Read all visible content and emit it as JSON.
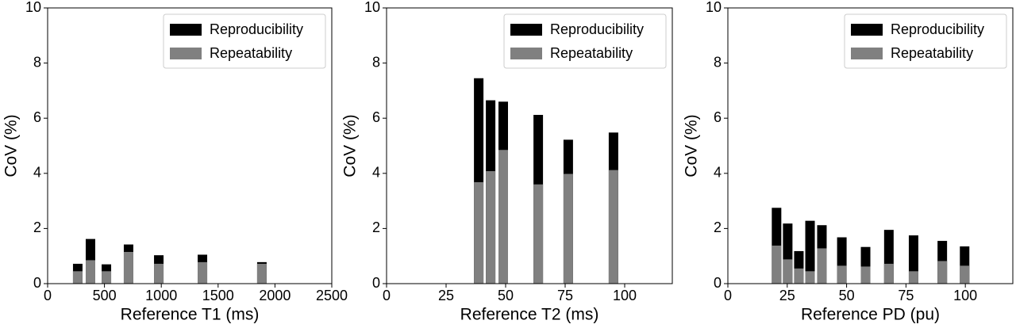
{
  "chart_data": [
    {
      "type": "bar",
      "xlabel": "Reference T1 (ms)",
      "ylabel": "CoV (%)",
      "xlim": [
        0,
        2500
      ],
      "xticks": [
        0,
        500,
        1000,
        1500,
        2000,
        2500
      ],
      "ylim": [
        0,
        10
      ],
      "yticks": [
        0,
        2,
        4,
        6,
        8,
        10
      ],
      "legend": "upper right",
      "x": [
        265,
        377,
        517,
        712,
        978,
        1362,
        1885
      ],
      "series": [
        {
          "name": "Reproducibility",
          "color": "#000000",
          "values": [
            0.72,
            1.62,
            0.7,
            1.42,
            1.03,
            1.05,
            0.78
          ]
        },
        {
          "name": "Repeatability",
          "color": "#808080",
          "values": [
            0.45,
            0.85,
            0.45,
            1.15,
            0.72,
            0.78,
            0.72
          ]
        }
      ]
    },
    {
      "type": "bar",
      "xlabel": "Reference T2 (ms)",
      "ylabel": "CoV (%)",
      "xlim": [
        0,
        120
      ],
      "xticks": [
        0,
        25,
        50,
        75,
        100
      ],
      "ylim": [
        0,
        10
      ],
      "yticks": [
        0,
        2,
        4,
        6,
        8,
        10
      ],
      "legend": "upper right",
      "x": [
        38.7,
        43.7,
        49,
        63.7,
        76.3,
        95.3
      ],
      "series": [
        {
          "name": "Reproducibility",
          "color": "#000000",
          "values": [
            7.45,
            6.65,
            6.6,
            6.12,
            5.22,
            5.48
          ]
        },
        {
          "name": "Repeatability",
          "color": "#808080",
          "values": [
            3.68,
            4.08,
            4.85,
            3.6,
            3.98,
            4.12
          ]
        }
      ]
    },
    {
      "type": "bar",
      "xlabel": "Reference PD (pu)",
      "ylabel": "CoV (%)",
      "xlim": [
        0,
        120
      ],
      "xticks": [
        0,
        25,
        50,
        75,
        100
      ],
      "ylim": [
        0,
        10
      ],
      "yticks": [
        0,
        2,
        4,
        6,
        8,
        10
      ],
      "legend": "upper right",
      "x": [
        20.5,
        25.2,
        29.9,
        34.6,
        39.6,
        48,
        58,
        67.8,
        78.2,
        90.3,
        99.7
      ],
      "series": [
        {
          "name": "Reproducibility",
          "color": "#000000",
          "values": [
            2.75,
            2.18,
            1.18,
            2.28,
            2.12,
            1.68,
            1.33,
            1.95,
            1.75,
            1.55,
            1.35
          ]
        },
        {
          "name": "Repeatability",
          "color": "#808080",
          "values": [
            1.38,
            0.88,
            0.55,
            0.45,
            1.28,
            0.65,
            0.62,
            0.72,
            0.45,
            0.82,
            0.65
          ]
        }
      ]
    }
  ]
}
